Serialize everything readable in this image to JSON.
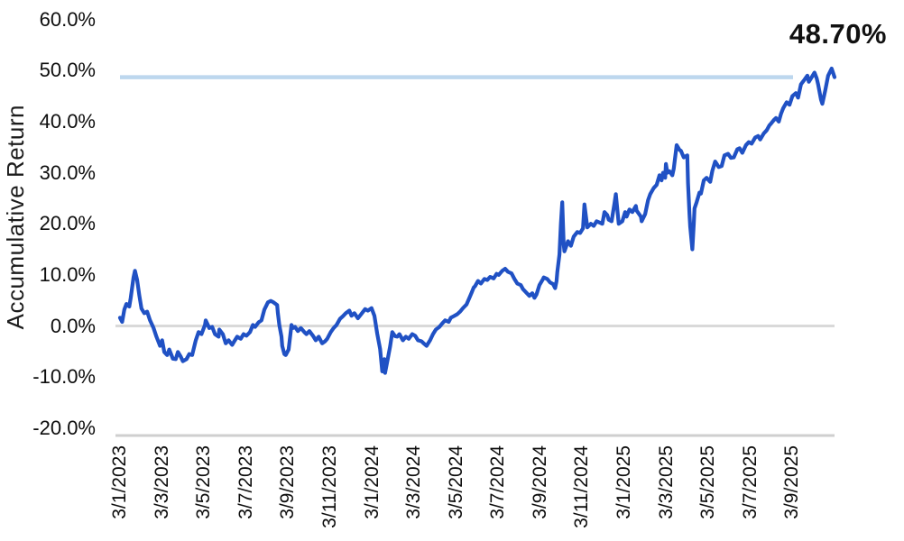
{
  "chart_data": {
    "type": "line",
    "title": "",
    "xlabel": "",
    "ylabel": "Accumulative Return",
    "y_tick_labels": [
      "60.0%",
      "50.0%",
      "40.0%",
      "30.0%",
      "20.0%",
      "10.0%",
      "0.0%",
      "-10.0%",
      "-20.0%"
    ],
    "y_tick_values": [
      60,
      50,
      40,
      30,
      20,
      10,
      0,
      -10,
      -20
    ],
    "ylim": [
      -20,
      60
    ],
    "x_tick_labels": [
      "3/1/2023",
      "3/3/2023",
      "3/5/2023",
      "3/7/2023",
      "3/9/2023",
      "3/11/2023",
      "3/1/2024",
      "3/3/2024",
      "3/5/2024",
      "3/7/2024",
      "3/9/2024",
      "3/11/2024",
      "3/1/2025",
      "3/3/2025",
      "3/5/2025",
      "3/7/2025",
      "3/9/2025"
    ],
    "x_unit": "fraction of x-axis span (0 = 3/1/2023 tick, 1 = right edge of axis, about two months past 3/9/2025)",
    "grid": "single light horizontal gridline at 0% plus bottom axis line; no vertical gridlines",
    "legend": "none",
    "annotation": {
      "label": "48.70%",
      "value": 48.7
    },
    "reference_line": {
      "value": 48.7,
      "style": "solid light blue horizontal line ending before last data"
    },
    "colors": {
      "line": "#2051C4",
      "reference": "#BDD7EE",
      "zero_gridline": "#D9D9D9",
      "axis": "#CFCFCF",
      "text": "#0D0D0D"
    },
    "series": [
      {
        "name": "Accumulative Return",
        "points": [
          [
            0.0,
            1.6
          ],
          [
            0.003,
            0.8
          ],
          [
            0.006,
            3.2
          ],
          [
            0.009,
            4.3
          ],
          [
            0.013,
            3.8
          ],
          [
            0.015,
            5.5
          ],
          [
            0.019,
            9.5
          ],
          [
            0.021,
            10.8
          ],
          [
            0.024,
            9.0
          ],
          [
            0.027,
            6.0
          ],
          [
            0.03,
            3.4
          ],
          [
            0.034,
            2.5
          ],
          [
            0.038,
            2.8
          ],
          [
            0.042,
            1.1
          ],
          [
            0.047,
            -0.4
          ],
          [
            0.051,
            -2.1
          ],
          [
            0.056,
            -3.9
          ],
          [
            0.059,
            -2.8
          ],
          [
            0.062,
            -5.1
          ],
          [
            0.066,
            -5.7
          ],
          [
            0.069,
            -4.6
          ],
          [
            0.074,
            -6.4
          ],
          [
            0.078,
            -6.5
          ],
          [
            0.081,
            -5.1
          ],
          [
            0.085,
            -6.0
          ],
          [
            0.088,
            -6.9
          ],
          [
            0.093,
            -6.5
          ],
          [
            0.097,
            -5.5
          ],
          [
            0.101,
            -5.7
          ],
          [
            0.106,
            -2.8
          ],
          [
            0.11,
            -1.2
          ],
          [
            0.114,
            -1.6
          ],
          [
            0.119,
            0.2
          ],
          [
            0.12,
            1.1
          ],
          [
            0.125,
            -0.4
          ],
          [
            0.129,
            -0.2
          ],
          [
            0.133,
            -1.6
          ],
          [
            0.138,
            -2.1
          ],
          [
            0.139,
            -0.7
          ],
          [
            0.144,
            -1.6
          ],
          [
            0.148,
            -3.4
          ],
          [
            0.152,
            -2.8
          ],
          [
            0.157,
            -3.7
          ],
          [
            0.16,
            -3.0
          ],
          [
            0.164,
            -2.1
          ],
          [
            0.169,
            -2.5
          ],
          [
            0.173,
            -1.6
          ],
          [
            0.177,
            -1.9
          ],
          [
            0.182,
            -1.2
          ],
          [
            0.186,
            0.2
          ],
          [
            0.189,
            -0.2
          ],
          [
            0.194,
            0.7
          ],
          [
            0.198,
            1.1
          ],
          [
            0.202,
            3.2
          ],
          [
            0.207,
            4.6
          ],
          [
            0.211,
            4.9
          ],
          [
            0.215,
            4.6
          ],
          [
            0.22,
            4.1
          ],
          [
            0.221,
            2.5
          ],
          [
            0.223,
            0.2
          ],
          [
            0.226,
            -2.1
          ],
          [
            0.227,
            -3.9
          ],
          [
            0.23,
            -5.5
          ],
          [
            0.232,
            -5.7
          ],
          [
            0.236,
            -4.6
          ],
          [
            0.24,
            0.2
          ],
          [
            0.242,
            -0.4
          ],
          [
            0.245,
            -0.2
          ],
          [
            0.249,
            -1.0
          ],
          [
            0.253,
            -0.4
          ],
          [
            0.258,
            -1.2
          ],
          [
            0.261,
            -1.6
          ],
          [
            0.265,
            -1.0
          ],
          [
            0.27,
            -1.9
          ],
          [
            0.274,
            -2.8
          ],
          [
            0.278,
            -2.1
          ],
          [
            0.283,
            -3.4
          ],
          [
            0.287,
            -3.0
          ],
          [
            0.29,
            -2.5
          ],
          [
            0.295,
            -1.2
          ],
          [
            0.299,
            -0.4
          ],
          [
            0.303,
            0.2
          ],
          [
            0.308,
            1.4
          ],
          [
            0.312,
            1.9
          ],
          [
            0.316,
            2.5
          ],
          [
            0.321,
            3.0
          ],
          [
            0.324,
            2.0
          ],
          [
            0.328,
            2.5
          ],
          [
            0.333,
            1.5
          ],
          [
            0.337,
            2.2
          ],
          [
            0.343,
            3.3
          ],
          [
            0.347,
            3.0
          ],
          [
            0.352,
            3.5
          ],
          [
            0.356,
            2.0
          ],
          [
            0.36,
            -1.5
          ],
          [
            0.364,
            -4.5
          ],
          [
            0.367,
            -8.9
          ],
          [
            0.37,
            -6.5
          ],
          [
            0.371,
            -9.2
          ],
          [
            0.374,
            -7.0
          ],
          [
            0.378,
            -4.0
          ],
          [
            0.381,
            -1.2
          ],
          [
            0.385,
            -2.0
          ],
          [
            0.388,
            -2.1
          ],
          [
            0.391,
            -1.6
          ],
          [
            0.396,
            -2.8
          ],
          [
            0.4,
            -2.1
          ],
          [
            0.404,
            -2.5
          ],
          [
            0.409,
            -1.6
          ],
          [
            0.413,
            -1.9
          ],
          [
            0.417,
            -2.8
          ],
          [
            0.422,
            -3.0
          ],
          [
            0.425,
            -3.4
          ],
          [
            0.429,
            -3.9
          ],
          [
            0.434,
            -2.8
          ],
          [
            0.438,
            -1.6
          ],
          [
            0.442,
            -0.7
          ],
          [
            0.447,
            -0.2
          ],
          [
            0.451,
            0.5
          ],
          [
            0.455,
            1.1
          ],
          [
            0.46,
            0.8
          ],
          [
            0.463,
            1.6
          ],
          [
            0.467,
            1.9
          ],
          [
            0.472,
            2.3
          ],
          [
            0.476,
            2.8
          ],
          [
            0.48,
            3.5
          ],
          [
            0.485,
            4.2
          ],
          [
            0.489,
            5.5
          ],
          [
            0.492,
            6.5
          ],
          [
            0.495,
            7.5
          ],
          [
            0.497,
            7.8
          ],
          [
            0.501,
            8.8
          ],
          [
            0.505,
            8.3
          ],
          [
            0.51,
            9.2
          ],
          [
            0.514,
            9.0
          ],
          [
            0.518,
            9.6
          ],
          [
            0.523,
            9.3
          ],
          [
            0.527,
            10.2
          ],
          [
            0.53,
            10.0
          ],
          [
            0.535,
            10.8
          ],
          [
            0.539,
            11.2
          ],
          [
            0.543,
            10.6
          ],
          [
            0.548,
            10.3
          ],
          [
            0.552,
            9.2
          ],
          [
            0.556,
            8.3
          ],
          [
            0.561,
            8.0
          ],
          [
            0.564,
            7.2
          ],
          [
            0.568,
            6.6
          ],
          [
            0.573,
            5.9
          ],
          [
            0.577,
            6.4
          ],
          [
            0.58,
            5.5
          ],
          [
            0.583,
            6.2
          ],
          [
            0.587,
            8.0
          ],
          [
            0.592,
            9.2
          ],
          [
            0.593,
            9.5
          ],
          [
            0.598,
            9.2
          ],
          [
            0.602,
            8.5
          ],
          [
            0.606,
            8.2
          ],
          [
            0.609,
            7.4
          ],
          [
            0.611,
            8.8
          ],
          [
            0.612,
            10.5
          ],
          [
            0.615,
            14.0
          ],
          [
            0.617,
            20.0
          ],
          [
            0.619,
            24.2
          ],
          [
            0.621,
            16.0
          ],
          [
            0.622,
            14.6
          ],
          [
            0.627,
            16.6
          ],
          [
            0.631,
            15.7
          ],
          [
            0.635,
            17.5
          ],
          [
            0.64,
            18.4
          ],
          [
            0.644,
            18.2
          ],
          [
            0.648,
            19.1
          ],
          [
            0.65,
            23.8
          ],
          [
            0.654,
            19.3
          ],
          [
            0.659,
            20.0
          ],
          [
            0.663,
            19.6
          ],
          [
            0.667,
            20.5
          ],
          [
            0.672,
            20.2
          ],
          [
            0.675,
            20.0
          ],
          [
            0.678,
            22.3
          ],
          [
            0.682,
            21.7
          ],
          [
            0.684,
            20.8
          ],
          [
            0.688,
            20.5
          ],
          [
            0.692,
            24.0
          ],
          [
            0.694,
            25.8
          ],
          [
            0.698,
            20.0
          ],
          [
            0.703,
            20.5
          ],
          [
            0.707,
            22.3
          ],
          [
            0.709,
            21.4
          ],
          [
            0.713,
            22.8
          ],
          [
            0.717,
            22.3
          ],
          [
            0.722,
            23.5
          ],
          [
            0.723,
            22.6
          ],
          [
            0.729,
            21.4
          ],
          [
            0.73,
            20.5
          ],
          [
            0.735,
            21.9
          ],
          [
            0.739,
            24.6
          ],
          [
            0.742,
            25.8
          ],
          [
            0.747,
            27.0
          ],
          [
            0.751,
            27.6
          ],
          [
            0.755,
            29.5
          ],
          [
            0.758,
            28.5
          ],
          [
            0.76,
            30.0
          ],
          [
            0.763,
            29.0
          ],
          [
            0.764,
            31.7
          ],
          [
            0.766,
            30.0
          ],
          [
            0.769,
            30.3
          ],
          [
            0.773,
            29.5
          ],
          [
            0.775,
            30.8
          ],
          [
            0.779,
            35.4
          ],
          [
            0.783,
            34.5
          ],
          [
            0.785,
            34.3
          ],
          [
            0.789,
            33.0
          ],
          [
            0.794,
            33.4
          ],
          [
            0.795,
            28.0
          ],
          [
            0.797,
            22.0
          ],
          [
            0.798,
            19.5
          ],
          [
            0.801,
            15.0
          ],
          [
            0.803,
            20.0
          ],
          [
            0.804,
            23.0
          ],
          [
            0.807,
            24.2
          ],
          [
            0.811,
            26.1
          ],
          [
            0.813,
            25.9
          ],
          [
            0.817,
            28.5
          ],
          [
            0.821,
            29.0
          ],
          [
            0.826,
            28.2
          ],
          [
            0.829,
            30.4
          ],
          [
            0.833,
            32.2
          ],
          [
            0.838,
            31.1
          ],
          [
            0.842,
            31.3
          ],
          [
            0.846,
            33.4
          ],
          [
            0.851,
            33.7
          ],
          [
            0.855,
            32.9
          ],
          [
            0.859,
            33.0
          ],
          [
            0.864,
            34.6
          ],
          [
            0.867,
            34.8
          ],
          [
            0.871,
            33.9
          ],
          [
            0.876,
            35.4
          ],
          [
            0.88,
            36.0
          ],
          [
            0.884,
            35.7
          ],
          [
            0.889,
            36.9
          ],
          [
            0.893,
            37.2
          ],
          [
            0.896,
            36.5
          ],
          [
            0.901,
            37.7
          ],
          [
            0.905,
            38.3
          ],
          [
            0.909,
            39.3
          ],
          [
            0.911,
            39.6
          ],
          [
            0.915,
            40.3
          ],
          [
            0.918,
            40.7
          ],
          [
            0.922,
            40.0
          ],
          [
            0.925,
            41.5
          ],
          [
            0.928,
            42.6
          ],
          [
            0.933,
            43.8
          ],
          [
            0.937,
            43.3
          ],
          [
            0.941,
            45.0
          ],
          [
            0.946,
            45.6
          ],
          [
            0.949,
            44.7
          ],
          [
            0.953,
            47.3
          ],
          [
            0.958,
            48.2
          ],
          [
            0.962,
            49.0
          ],
          [
            0.964,
            47.8
          ],
          [
            0.968,
            48.7
          ],
          [
            0.972,
            49.6
          ],
          [
            0.975,
            48.5
          ],
          [
            0.977,
            47.3
          ],
          [
            0.981,
            44.3
          ],
          [
            0.983,
            43.5
          ],
          [
            0.987,
            46.1
          ],
          [
            0.991,
            49.0
          ],
          [
            0.996,
            50.4
          ],
          [
            1.0,
            48.7
          ]
        ]
      }
    ]
  }
}
